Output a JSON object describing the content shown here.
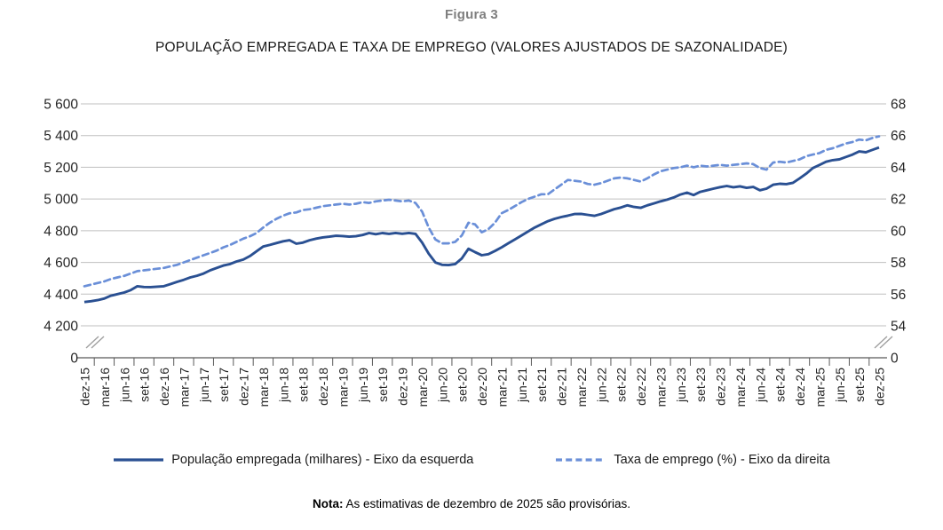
{
  "figure": {
    "label": "Figura 3",
    "title": "POPULAÇÃO EMPREGADA E TAXA DE EMPREGO (VALORES AJUSTADOS DE SAZONALIDADE)"
  },
  "colors": {
    "series_population": "#2A5092",
    "series_rate": "#6A8FD8",
    "gridline": "#BFBFBF",
    "axis": "#595959",
    "axis_break": "#A0A0A0",
    "tick_text": "#262626"
  },
  "chart_data": {
    "type": "line",
    "title": "POPULAÇÃO EMPREGADA E TAXA DE EMPREGO (VALORES AJUSTADOS DE SAZONALIDADE)",
    "grid": true,
    "legend_position": "bottom",
    "axis_break": true,
    "x_tick_labels": [
      "dez-15",
      "mar-16",
      "jun-16",
      "set-16",
      "dez-16",
      "mar-17",
      "jun-17",
      "set-17",
      "dez-17",
      "mar-18",
      "jun-18",
      "set-18",
      "dez-18",
      "mar-19",
      "jun-19",
      "set-19",
      "dez-19",
      "mar-20",
      "jun-20",
      "set-20",
      "dez-20",
      "mar-21",
      "jun-21",
      "set-21",
      "dez-21",
      "mar-22",
      "jun-22",
      "set-22",
      "dez-22",
      "mar-23",
      "jun-23",
      "set-23",
      "dez-23",
      "mar-24",
      "jun-24",
      "set-24",
      "dez-24",
      "mar-25",
      "jun-25",
      "set-25",
      "dez-25"
    ],
    "x_frequency": "monthly",
    "x_range": [
      "dez-15",
      "dez-25"
    ],
    "left_axis": {
      "tick_labels": [
        "5 600",
        "5 400",
        "5 200",
        "5 000",
        "4 800",
        "4 600",
        "4 400",
        "4 200"
      ],
      "tick_values": [
        5600,
        5400,
        5200,
        5000,
        4800,
        4600,
        4400,
        4200
      ],
      "zero_label": "0",
      "ylim": [
        4200,
        5600
      ]
    },
    "right_axis": {
      "tick_labels": [
        "68",
        "66",
        "64",
        "62",
        "60",
        "58",
        "56",
        "54"
      ],
      "tick_values": [
        68,
        66,
        64,
        62,
        60,
        58,
        56,
        54
      ],
      "zero_label": "0",
      "ylim": [
        54,
        68
      ]
    },
    "series": [
      {
        "name": "População empregada (milhares) - Eixo da esquerda",
        "axis": "left",
        "style": "solid",
        "values": [
          4350,
          4355,
          4362,
          4372,
          4390,
          4400,
          4410,
          4425,
          4450,
          4445,
          4444,
          4447,
          4450,
          4463,
          4477,
          4490,
          4505,
          4516,
          4530,
          4550,
          4565,
          4580,
          4590,
          4606,
          4618,
          4640,
          4670,
          4700,
          4710,
          4722,
          4733,
          4740,
          4718,
          4725,
          4740,
          4750,
          4758,
          4762,
          4768,
          4766,
          4762,
          4765,
          4773,
          4785,
          4778,
          4785,
          4780,
          4786,
          4781,
          4786,
          4780,
          4725,
          4655,
          4600,
          4585,
          4583,
          4590,
          4625,
          4686,
          4665,
          4645,
          4652,
          4672,
          4695,
          4720,
          4745,
          4770,
          4795,
          4820,
          4840,
          4860,
          4875,
          4886,
          4895,
          4905,
          4906,
          4900,
          4894,
          4905,
          4920,
          4936,
          4946,
          4960,
          4950,
          4944,
          4960,
          4972,
          4985,
          4996,
          5010,
          5028,
          5040,
          5025,
          5045,
          5055,
          5065,
          5075,
          5082,
          5074,
          5080,
          5070,
          5076,
          5055,
          5065,
          5090,
          5096,
          5094,
          5102,
          5130,
          5160,
          5195,
          5215,
          5235,
          5245,
          5250,
          5265,
          5280,
          5300,
          5295,
          5310,
          5325
        ]
      },
      {
        "name": "Taxa de emprego (%) - Eixo da direita",
        "axis": "right",
        "style": "dashed",
        "values": [
          56.5,
          56.6,
          56.7,
          56.8,
          56.95,
          57.05,
          57.15,
          57.3,
          57.45,
          57.5,
          57.55,
          57.6,
          57.65,
          57.75,
          57.85,
          58.0,
          58.15,
          58.3,
          58.45,
          58.6,
          58.75,
          58.95,
          59.1,
          59.3,
          59.5,
          59.65,
          59.85,
          60.2,
          60.5,
          60.75,
          60.95,
          61.1,
          61.15,
          61.3,
          61.35,
          61.45,
          61.55,
          61.6,
          61.65,
          61.7,
          61.65,
          61.7,
          61.8,
          61.75,
          61.85,
          61.9,
          61.95,
          61.9,
          61.85,
          61.9,
          61.75,
          61.2,
          60.2,
          59.45,
          59.2,
          59.2,
          59.3,
          59.7,
          60.5,
          60.4,
          59.9,
          60.1,
          60.5,
          61.1,
          61.3,
          61.55,
          61.8,
          62.0,
          62.15,
          62.3,
          62.3,
          62.6,
          62.9,
          63.2,
          63.15,
          63.1,
          62.95,
          62.9,
          63.0,
          63.15,
          63.3,
          63.35,
          63.3,
          63.2,
          63.1,
          63.3,
          63.55,
          63.75,
          63.85,
          63.95,
          64.0,
          64.1,
          64.0,
          64.1,
          64.05,
          64.1,
          64.15,
          64.1,
          64.15,
          64.2,
          64.25,
          64.2,
          63.95,
          63.85,
          64.3,
          64.35,
          64.3,
          64.4,
          64.5,
          64.7,
          64.8,
          64.9,
          65.1,
          65.2,
          65.35,
          65.5,
          65.6,
          65.75,
          65.7,
          65.85,
          65.95
        ]
      }
    ]
  },
  "legend": {
    "population_label": "População empregada (milhares) - Eixo da esquerda",
    "rate_label": "Taxa de emprego (%) - Eixo da direita"
  },
  "note": {
    "label": "Nota:",
    "text": " As estimativas de dezembro de 2025 são provisórias."
  }
}
